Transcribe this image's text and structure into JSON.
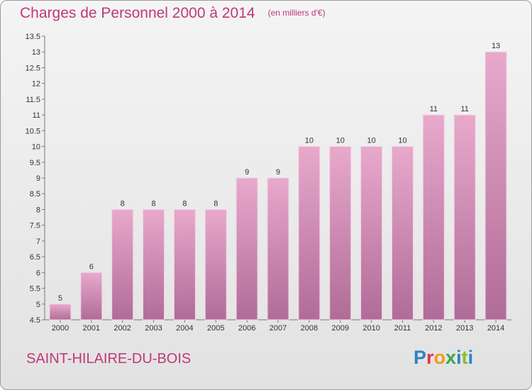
{
  "title": "Charges de Personnel 2000 à 2014",
  "subtitle": "(en milliers d'€)",
  "commune": "SAINT-HILAIRE-DU-BOIS",
  "logo": [
    "P",
    "r",
    "o",
    "x",
    "i",
    "t",
    "i"
  ],
  "colors": {
    "bar_top": "#e8a9cc",
    "bar_bottom": "#b06c98",
    "title": "#c0387a"
  },
  "chart_data": {
    "type": "bar",
    "title": "Charges de Personnel 2000 à 2014",
    "categories": [
      "2000",
      "2001",
      "2002",
      "2003",
      "2004",
      "2005",
      "2006",
      "2007",
      "2008",
      "2009",
      "2010",
      "2011",
      "2012",
      "2013",
      "2014"
    ],
    "values": [
      5,
      6,
      8,
      8,
      8,
      8,
      9,
      9,
      10,
      10,
      10,
      10,
      11,
      11,
      13
    ],
    "ylim": [
      4.5,
      13.5
    ],
    "yticks": [
      "4.5",
      "5",
      "5.5",
      "6",
      "6.5",
      "7",
      "7.5",
      "8",
      "8.5",
      "9",
      "9.5",
      "10",
      "10.5",
      "11",
      "11.5",
      "12",
      "12.5",
      "13",
      "13.5"
    ],
    "grid": false,
    "legend": "none"
  }
}
